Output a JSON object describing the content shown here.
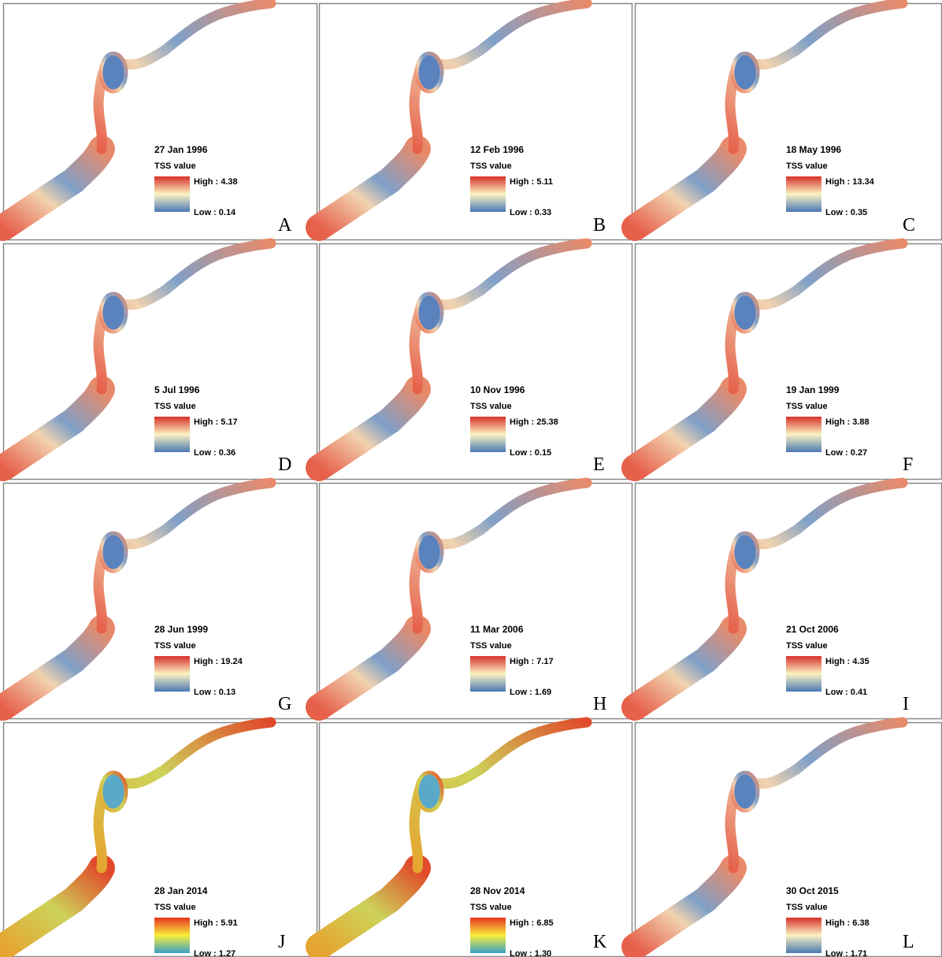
{
  "panels": [
    {
      "date": "27 Jan 1996",
      "legend_title": "TSS value",
      "high": "High : 4.38",
      "low": "Low : 0.14",
      "label": "A"
    },
    {
      "date": "12 Feb 1996",
      "legend_title": "TSS value",
      "high": "High : 5.11",
      "low": "Low : 0.33",
      "label": "B"
    },
    {
      "date": "18 May 1996",
      "legend_title": "TSS value",
      "high": "High : 13.34",
      "low": "Low : 0.35",
      "label": "C"
    },
    {
      "date": "5 Jul 1996",
      "legend_title": "TSS value",
      "high": "High : 5.17",
      "low": "Low : 0.36",
      "label": "D"
    },
    {
      "date": "10 Nov 1996",
      "legend_title": "TSS value",
      "high": "High : 25.38",
      "low": "Low : 0.15",
      "label": "E"
    },
    {
      "date": "19 Jan 1999",
      "legend_title": "TSS value",
      "high": "High : 3.88",
      "low": "Low : 0.27",
      "label": "F"
    },
    {
      "date": "28 Jun 1999",
      "legend_title": "TSS value",
      "high": "High : 19.24",
      "low": "Low : 0.13",
      "label": "G"
    },
    {
      "date": "11 Mar 2006",
      "legend_title": "TSS value",
      "high": "High : 7.17",
      "low": "Low : 1.69",
      "label": "H"
    },
    {
      "date": "21 Oct 2006",
      "legend_title": "TSS value",
      "high": "High : 4.35",
      "low": "Low : 0.41",
      "label": "I"
    },
    {
      "date": "28 Jan 2014",
      "legend_title": "TSS value",
      "high": "High : 5.91",
      "low": "Low : 1.27",
      "label": "J"
    },
    {
      "date": "28 Nov 2014",
      "legend_title": "TSS value",
      "high": "High : 6.85",
      "low": "Low : 1.30",
      "label": "K"
    },
    {
      "date": "30 Oct 2015",
      "legend_title": "TSS value",
      "high": "High : 6.38",
      "low": "Low : 1.71",
      "label": "L"
    }
  ]
}
